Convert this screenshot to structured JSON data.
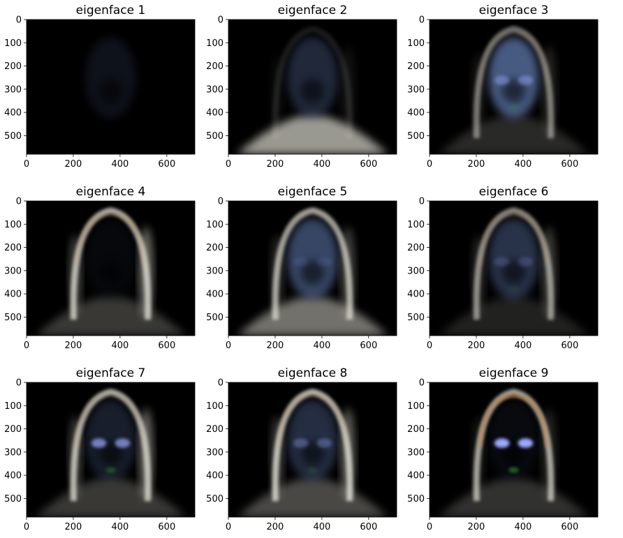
{
  "chart_data": {
    "type": "image",
    "xlim": [
      0,
      720
    ],
    "ylim": [
      580,
      0
    ],
    "xticks": [
      0,
      200,
      400,
      600
    ],
    "yticks": [
      0,
      100,
      200,
      300,
      400,
      500
    ],
    "colors": {
      "background": "#000000",
      "skin": "#6a86c0",
      "highlight": "#e8e6da",
      "warm": "#c27a3a",
      "eye": "#9aa8ff",
      "green": "#2e8a2e"
    },
    "panels": [
      {
        "title": "eigenface 1",
        "head": 0.18,
        "hair": 0.0,
        "shoulders": 0.02,
        "rim": 0.0,
        "eyes": 0.0,
        "warm": 0.0
      },
      {
        "title": "eigenface 2",
        "head": 0.4,
        "hair": 0.12,
        "shoulders": 0.95,
        "rim": 0.15,
        "eyes": 0.0,
        "warm": 0.0
      },
      {
        "title": "eigenface 3",
        "head": 0.9,
        "hair": 0.55,
        "shoulders": 0.25,
        "rim": 0.3,
        "eyes": 0.45,
        "warm": 0.2
      },
      {
        "title": "eigenface 4",
        "head": 0.08,
        "hair": 0.85,
        "shoulders": 0.35,
        "rim": 0.9,
        "eyes": 0.0,
        "warm": 0.4
      },
      {
        "title": "eigenface 5",
        "head": 0.7,
        "hair": 0.8,
        "shoulders": 0.7,
        "rim": 0.55,
        "eyes": 0.1,
        "warm": 0.1
      },
      {
        "title": "eigenface 6",
        "head": 0.5,
        "hair": 0.65,
        "shoulders": 0.2,
        "rim": 0.5,
        "eyes": 0.2,
        "warm": 0.3
      },
      {
        "title": "eigenface 7",
        "head": 0.3,
        "hair": 0.85,
        "shoulders": 0.35,
        "rim": 0.85,
        "eyes": 0.7,
        "warm": 0.2
      },
      {
        "title": "eigenface 8",
        "head": 0.45,
        "hair": 0.9,
        "shoulders": 0.45,
        "rim": 0.8,
        "eyes": 0.35,
        "warm": 0.3
      },
      {
        "title": "eigenface 9",
        "head": 0.1,
        "hair": 0.8,
        "shoulders": 0.3,
        "rim": 0.3,
        "eyes": 1.0,
        "warm": 0.9
      }
    ]
  }
}
